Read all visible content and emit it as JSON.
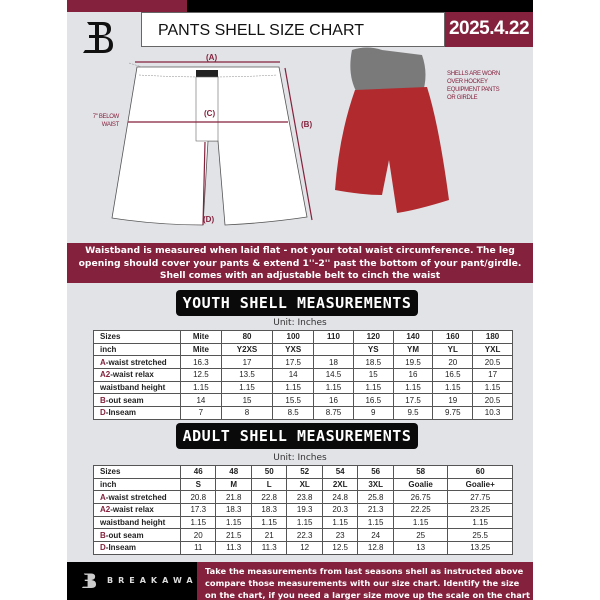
{
  "header": {
    "title": "PANTS SHELL SIZE CHART",
    "date": "2025.4.22"
  },
  "diagram": {
    "label_a": "(A)",
    "label_b": "(B)",
    "label_c": "(C)",
    "label_d": "(D)",
    "below_waist": "7'' BELOW WAIST",
    "shells_note": "SHELLS ARE WORN OVER HOCKEY EQUIPMENT PANTS OR GIRDLE"
  },
  "banner": "Waistband is measured when laid flat - not your total waist circumference. The leg opening should cover your pants & extend 1''-2'' past the bottom of your pant/girdle. Shell comes with an adjustable belt to cinch the waist",
  "youth": {
    "title": "YOUTH SHELL MEASUREMENTS",
    "unit": "Unit: Inches",
    "rows": [
      {
        "prefix": "",
        "label": "Sizes",
        "values": [
          "Mite",
          "80",
          "100",
          "110",
          "120",
          "140",
          "160",
          "180"
        ]
      },
      {
        "prefix": "",
        "label": "inch",
        "values": [
          "Mite",
          "Y2XS",
          "YXS",
          "",
          "YS",
          "YM",
          "YL",
          "YXL"
        ]
      },
      {
        "prefix": "A",
        "label": "-waist stretched",
        "values": [
          "16.3",
          "17",
          "17.5",
          "18",
          "18.5",
          "19.5",
          "20",
          "20.5"
        ]
      },
      {
        "prefix": "A2",
        "label": "-waist relax",
        "values": [
          "12.5",
          "13.5",
          "14",
          "14.5",
          "15",
          "16",
          "16.5",
          "17"
        ]
      },
      {
        "prefix": "",
        "label": "waistband height",
        "values": [
          "1.15",
          "1.15",
          "1.15",
          "1.15",
          "1.15",
          "1.15",
          "1.15",
          "1.15"
        ]
      },
      {
        "prefix": "B",
        "label": "-out seam",
        "values": [
          "14",
          "15",
          "15.5",
          "16",
          "16.5",
          "17.5",
          "19",
          "20.5"
        ]
      },
      {
        "prefix": "D",
        "label": "-Inseam",
        "values": [
          "7",
          "8",
          "8.5",
          "8.75",
          "9",
          "9.5",
          "9.75",
          "10.3"
        ]
      }
    ]
  },
  "adult": {
    "title": "ADULT SHELL MEASUREMENTS",
    "unit": "Unit: Inches",
    "rows": [
      {
        "prefix": "",
        "label": "Sizes",
        "values": [
          "46",
          "48",
          "50",
          "52",
          "54",
          "56",
          "58",
          "60"
        ]
      },
      {
        "prefix": "",
        "label": "inch",
        "values": [
          "S",
          "M",
          "L",
          "XL",
          "2XL",
          "3XL",
          "Goalie",
          "Goalie+"
        ]
      },
      {
        "prefix": "A",
        "label": "-waist stretched",
        "values": [
          "20.8",
          "21.8",
          "22.8",
          "23.8",
          "24.8",
          "25.8",
          "26.75",
          "27.75"
        ]
      },
      {
        "prefix": "A2",
        "label": "-waist relax",
        "values": [
          "17.3",
          "18.3",
          "18.3",
          "19.3",
          "20.3",
          "21.3",
          "22.25",
          "23.25"
        ]
      },
      {
        "prefix": "",
        "label": "waistband height",
        "values": [
          "1.15",
          "1.15",
          "1.15",
          "1.15",
          "1.15",
          "1.15",
          "1.15",
          "1.15"
        ]
      },
      {
        "prefix": "B",
        "label": "-out seam",
        "values": [
          "20",
          "21.5",
          "21",
          "22.3",
          "23",
          "24",
          "25",
          "25.5"
        ]
      },
      {
        "prefix": "D",
        "label": "-Inseam",
        "values": [
          "11",
          "11.3",
          "11.3",
          "12",
          "12.5",
          "12.8",
          "13",
          "13.25"
        ]
      }
    ]
  },
  "footer": {
    "brand": "BREAKAWAY",
    "text": "Take the measurements from last seasons shell as instructed above compare those measurements  with our size chart. Identify the size on the chart, if you need a larger size move up the scale on the chart"
  },
  "colors": {
    "accent": "#84213c",
    "background": "#e2e3e7"
  }
}
